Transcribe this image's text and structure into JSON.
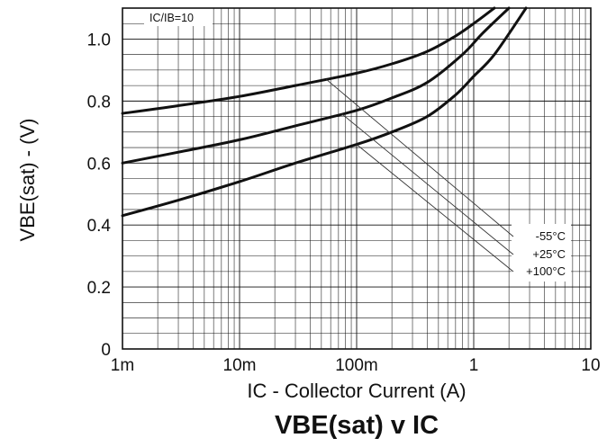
{
  "chart_data": {
    "type": "line",
    "title": "VBE(sat) v IC",
    "xlabel": "IC - Collector Current (A)",
    "ylabel": "VBE(sat) - (V)",
    "x_scale": "log",
    "xlim": [
      0.001,
      10
    ],
    "ylim": [
      0,
      1.1
    ],
    "grid": true,
    "x_ticks": [
      0.001,
      0.01,
      0.1,
      1,
      10
    ],
    "x_tick_labels": [
      "1m",
      "10m",
      "100m",
      "1",
      "10"
    ],
    "y_ticks": [
      0,
      0.2,
      0.4,
      0.6,
      0.8,
      1.0
    ],
    "y_tick_labels": [
      "0",
      "0.2",
      "0.4",
      "0.6",
      "0.8",
      "1.0"
    ],
    "annotation": "IC/IB=10",
    "legend_placement": "right",
    "series": [
      {
        "name": "-55°C",
        "x": [
          0.001,
          0.003,
          0.01,
          0.03,
          0.1,
          0.2,
          0.4,
          0.7,
          1.0,
          1.5
        ],
        "y": [
          0.76,
          0.785,
          0.815,
          0.85,
          0.89,
          0.92,
          0.96,
          1.01,
          1.05,
          1.1
        ]
      },
      {
        "name": "+25°C",
        "x": [
          0.001,
          0.003,
          0.01,
          0.03,
          0.1,
          0.2,
          0.4,
          0.8,
          1.2,
          2.0
        ],
        "y": [
          0.6,
          0.635,
          0.675,
          0.72,
          0.77,
          0.81,
          0.86,
          0.95,
          1.02,
          1.1
        ]
      },
      {
        "name": "+100°C",
        "x": [
          0.001,
          0.003,
          0.01,
          0.03,
          0.1,
          0.2,
          0.4,
          0.7,
          1.0,
          1.5,
          2.8
        ],
        "y": [
          0.43,
          0.48,
          0.54,
          0.6,
          0.66,
          0.7,
          0.75,
          0.82,
          0.88,
          0.95,
          1.1
        ]
      }
    ]
  }
}
